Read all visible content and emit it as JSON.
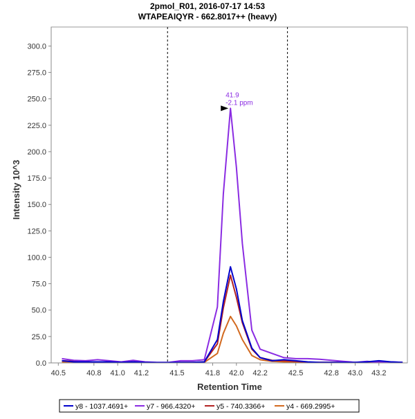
{
  "chart_data": {
    "type": "line",
    "title": "2pmol_R01, 2016-07-17 14:53",
    "subtitle": "WTAPEAIQYR - 662.8017++ (heavy)",
    "xlabel": "Retention Time",
    "ylabel": "Intensity 10^3",
    "xlim": [
      40.44,
      43.44
    ],
    "ylim": [
      0,
      318
    ],
    "x_ticks": [
      40.5,
      40.8,
      41.0,
      41.2,
      41.5,
      41.8,
      42.0,
      42.2,
      42.5,
      42.8,
      43.0,
      43.2
    ],
    "x_tick_labels": [
      "40.5",
      "40.8",
      "41.0",
      "41.2",
      "41.5",
      "41.8",
      "42.0",
      "42.2",
      "42.5",
      "42.8",
      "43.0",
      "43.2"
    ],
    "y_ticks": [
      0,
      25,
      50,
      75,
      100,
      125,
      150,
      175,
      200,
      225,
      250,
      275,
      300
    ],
    "y_tick_labels": [
      "0.0",
      "25.0",
      "50.0",
      "75.0",
      "100.0",
      "125.0",
      "150.0",
      "175.0",
      "200.0",
      "225.0",
      "250.0",
      "275.0",
      "300.0"
    ],
    "boundaries": [
      41.42,
      42.43
    ],
    "peak_annotation": {
      "x": 41.95,
      "y": 241,
      "rt_label": "41.9",
      "ppm_label": "-2.1 ppm"
    },
    "x": [
      40.53,
      40.63,
      40.73,
      40.83,
      40.93,
      41.03,
      41.13,
      41.23,
      41.33,
      41.43,
      41.53,
      41.63,
      41.73,
      41.84,
      41.89,
      41.95,
      42.0,
      42.05,
      42.13,
      42.2,
      42.3,
      42.4,
      42.5,
      42.6,
      42.7,
      42.8,
      42.9,
      43.0,
      43.1,
      43.2,
      43.3,
      43.4
    ],
    "series": [
      {
        "name": "y8 - 1037.4691+",
        "color": "#0000cc",
        "values": [
          2,
          1,
          1,
          1,
          1,
          0.5,
          1,
          0.5,
          0.3,
          0.3,
          0.5,
          0.5,
          1,
          22,
          58,
          91,
          70,
          40,
          14,
          5,
          2,
          3,
          2,
          1,
          0.5,
          0.5,
          0.5,
          0.5,
          1,
          2,
          1,
          0.5
        ]
      },
      {
        "name": "y7 - 966.4320+",
        "color": "#8a2be2",
        "values": [
          4,
          2.5,
          2,
          3,
          2,
          1,
          2.5,
          1,
          0.5,
          0.5,
          2,
          2,
          3,
          53,
          160,
          241,
          185,
          113,
          31,
          13,
          9,
          5,
          4,
          4,
          3.5,
          2.5,
          1.5,
          0.5,
          1.5,
          0.5,
          1,
          0.5
        ]
      },
      {
        "name": "y5 - 740.3366+",
        "color": "#b22222",
        "values": [
          2,
          1.5,
          1,
          1,
          1,
          0.5,
          1,
          0.5,
          0.3,
          0.3,
          0.5,
          0.5,
          1,
          18,
          52,
          83,
          62,
          38,
          13,
          5,
          2.5,
          2,
          1.5,
          0.5,
          0.5,
          0.5,
          0.5,
          0.5,
          0.5,
          1,
          0.5,
          0.3
        ]
      },
      {
        "name": "y4 - 669.2995+",
        "color": "#d2691e",
        "values": [
          1,
          1,
          0.5,
          0.5,
          0.5,
          0.3,
          0.5,
          0.3,
          0.3,
          0.3,
          0.3,
          0.3,
          0.5,
          9,
          28,
          44,
          35,
          22,
          7,
          3,
          1.5,
          1,
          1,
          0.5,
          0.5,
          0.5,
          0.3,
          0.3,
          0.3,
          0.3,
          0.3,
          0.3
        ]
      }
    ],
    "grid": false,
    "legend_position": "bottom"
  }
}
